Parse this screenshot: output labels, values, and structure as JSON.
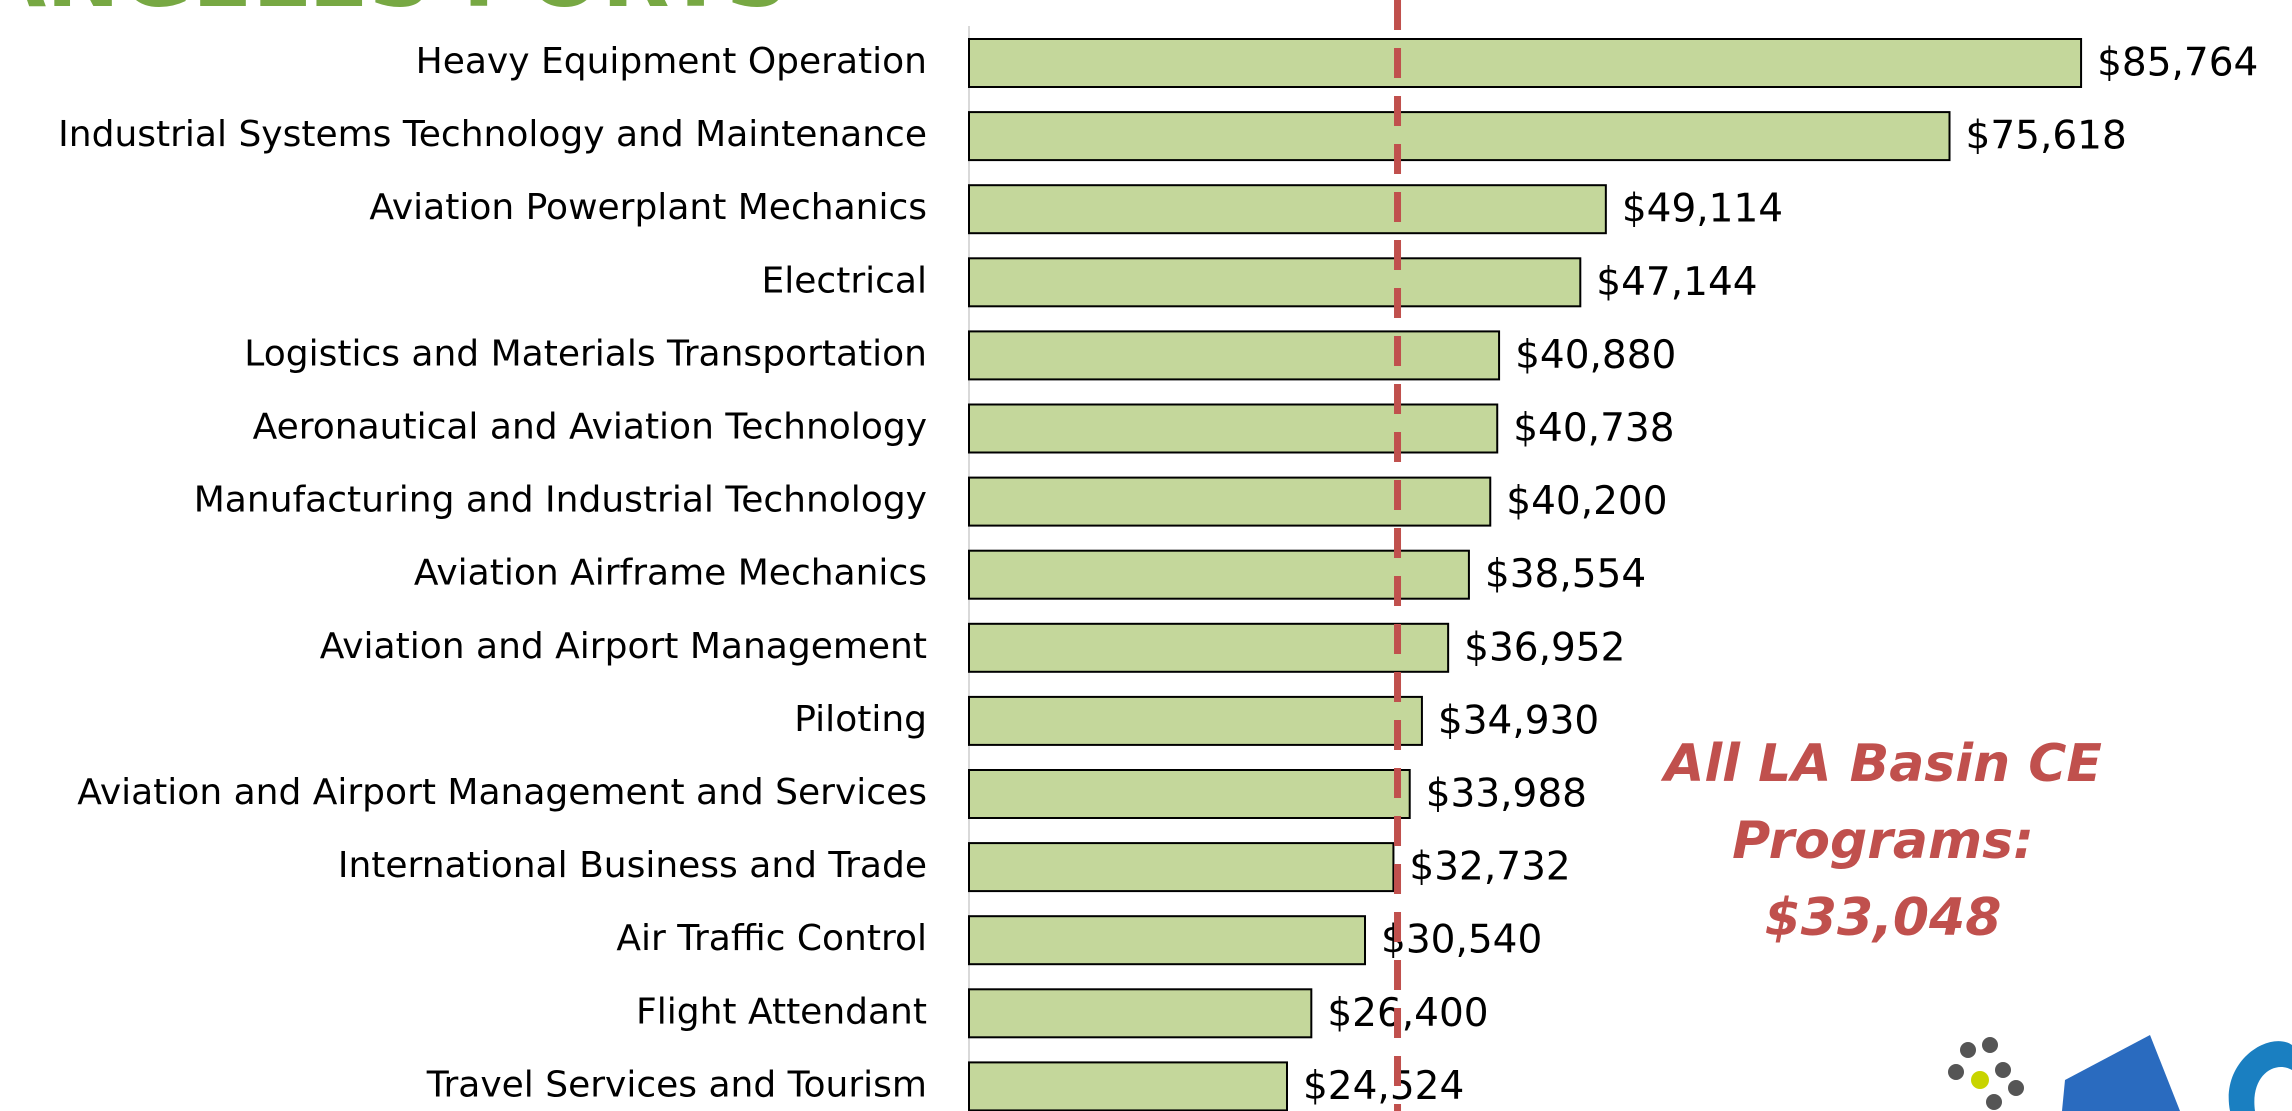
{
  "chart_data": {
    "type": "barh",
    "title": "LOS ANGELES PORTS",
    "categories": [
      "Heavy Equipment Operation",
      "Industrial Systems Technology and Maintenance",
      "Aviation Powerplant Mechanics",
      "Electrical",
      "Logistics and Materials Transportation",
      "Aeronautical and Aviation Technology",
      "Manufacturing and Industrial Technology",
      "Aviation Airframe Mechanics",
      "Aviation and Airport Management",
      "Piloting",
      "Aviation and Airport Management and Services",
      "International Business and Trade",
      "Air Traffic Control",
      "Flight Attendant",
      "Travel Services and Tourism"
    ],
    "values": [
      85764,
      75618,
      49114,
      47144,
      40880,
      40738,
      40200,
      38554,
      36952,
      34930,
      33988,
      32732,
      30540,
      26400,
      24524
    ],
    "value_labels": [
      "$85,764",
      "$75,618",
      "$49,114",
      "$47,144",
      "$40,880",
      "$40,738",
      "$40,200",
      "$38,554",
      "$36,952",
      "$34,930",
      "$33,988",
      "$32,732",
      "$30,540",
      "$26,400",
      "$24,524"
    ],
    "color": "#c4d79b",
    "xlim": [
      0,
      90000
    ],
    "reference_value": 33048,
    "reference_color": "#c0504d",
    "annotation": [
      "All LA Basin CE",
      "Programs:",
      "$33,048"
    ]
  }
}
